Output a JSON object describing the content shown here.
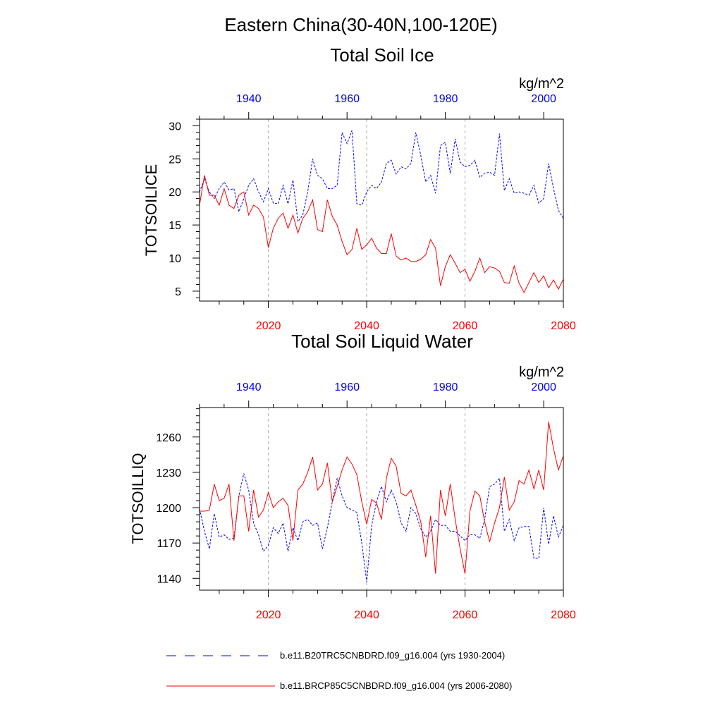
{
  "figure": {
    "main_title": "Eastern China(30-40N,100-120E)",
    "legend": [
      {
        "label": "b.e11.B20TRC5CNBDRD.f09_g16.004 (yrs 1930-2004)",
        "color": "#0000ff",
        "style": "dashed"
      },
      {
        "label": "b.e11.BRCP85C5CNBDRD.f09_g16.004 (yrs 2006-2080)",
        "color": "#ff0000",
        "style": "solid"
      }
    ]
  },
  "chart_data": [
    {
      "type": "line",
      "title": "Total Soil Ice",
      "units": "kg/m^2",
      "ylabel": "TOTSOILICE",
      "ylim": [
        3.5,
        31
      ],
      "yticks": [
        5,
        10,
        15,
        20,
        25,
        30
      ],
      "x_bottom": {
        "range": [
          2006,
          2080
        ],
        "ticks": [
          2020,
          2040,
          2060,
          2080
        ],
        "color": "#ff0000"
      },
      "x_top": {
        "range": [
          1930,
          2004
        ],
        "ticks": [
          1940,
          1960,
          1980,
          2000
        ],
        "color": "#0000ff"
      },
      "grid_x": [
        2020,
        2040,
        2060
      ],
      "series": [
        {
          "axis": "top",
          "color": "#0000ff",
          "style": "dashed",
          "x": [
            1930,
            1931,
            1932,
            1933,
            1934,
            1935,
            1936,
            1937,
            1938,
            1939,
            1940,
            1941,
            1942,
            1943,
            1944,
            1945,
            1946,
            1947,
            1948,
            1949,
            1950,
            1951,
            1952,
            1953,
            1954,
            1955,
            1956,
            1957,
            1958,
            1959,
            1960,
            1961,
            1962,
            1963,
            1964,
            1965,
            1966,
            1967,
            1968,
            1969,
            1970,
            1971,
            1972,
            1973,
            1974,
            1975,
            1976,
            1977,
            1978,
            1979,
            1980,
            1981,
            1982,
            1983,
            1984,
            1985,
            1986,
            1987,
            1988,
            1989,
            1990,
            1991,
            1992,
            1993,
            1994,
            1995,
            1996,
            1997,
            1998,
            1999,
            2000,
            2001,
            2002,
            2003,
            2004
          ],
          "y": [
            20,
            22,
            20,
            19,
            20.5,
            21.5,
            20.3,
            20.5,
            17,
            19,
            21,
            22,
            20,
            18.5,
            20.5,
            18.3,
            18.2,
            21,
            18.2,
            21.8,
            15.5,
            16.5,
            20,
            25,
            22.5,
            22,
            20.5,
            20.5,
            21,
            29,
            27.3,
            29.3,
            18.2,
            18,
            20,
            21,
            20.5,
            21.5,
            24.3,
            24.8,
            22.7,
            23.8,
            23.5,
            24.3,
            29,
            25.5,
            21.5,
            22.5,
            19.8,
            27,
            27.5,
            22.8,
            28,
            24.5,
            23.8,
            24,
            24.8,
            22.2,
            22.8,
            23,
            22.5,
            28.8,
            20.2,
            22,
            19.8,
            20,
            19.8,
            19.5,
            21,
            18.3,
            19,
            24.3,
            20.5,
            17.2,
            16
          ]
        },
        {
          "axis": "bottom",
          "color": "#ff0000",
          "style": "solid",
          "x": [
            2006,
            2007,
            2008,
            2009,
            2010,
            2011,
            2012,
            2013,
            2014,
            2015,
            2016,
            2017,
            2018,
            2019,
            2020,
            2021,
            2022,
            2023,
            2024,
            2025,
            2026,
            2027,
            2028,
            2029,
            2030,
            2031,
            2032,
            2033,
            2034,
            2035,
            2036,
            2037,
            2038,
            2039,
            2040,
            2041,
            2042,
            2043,
            2044,
            2045,
            2046,
            2047,
            2048,
            2049,
            2050,
            2051,
            2052,
            2053,
            2054,
            2055,
            2056,
            2057,
            2058,
            2059,
            2060,
            2061,
            2062,
            2063,
            2064,
            2065,
            2066,
            2067,
            2068,
            2069,
            2070,
            2071,
            2072,
            2073,
            2074,
            2075,
            2076,
            2077,
            2078,
            2079,
            2080
          ],
          "y": [
            18,
            22.5,
            19.5,
            19.5,
            18,
            20.5,
            18,
            17.5,
            19.5,
            20,
            16.5,
            18,
            17.5,
            16.2,
            11.6,
            14.5,
            16,
            16.8,
            14.5,
            16.5,
            13.8,
            16,
            17,
            18.8,
            14.3,
            14,
            18.8,
            16.3,
            15,
            12.5,
            10.5,
            11.3,
            14.5,
            11.3,
            12,
            13,
            11.5,
            10.7,
            10.7,
            13.7,
            10.3,
            9.7,
            10,
            9.5,
            9.5,
            9.8,
            10.5,
            12.8,
            11.5,
            5.8,
            8.7,
            10.5,
            9.2,
            7.8,
            8.3,
            6.5,
            8,
            10,
            7.8,
            8.7,
            8.5,
            8,
            6.3,
            6.2,
            8.8,
            6.2,
            4.8,
            6.3,
            7.8,
            6.3,
            7.3,
            5.5,
            6.7,
            5.3,
            6.8
          ]
        }
      ]
    },
    {
      "type": "line",
      "title": "Total Soil Liquid Water",
      "units": "kg/m^2",
      "ylabel": "TOTSOILLIQ",
      "ylim": [
        1130,
        1285
      ],
      "yticks": [
        1140,
        1170,
        1200,
        1230,
        1260
      ],
      "x_bottom": {
        "range": [
          2006,
          2080
        ],
        "ticks": [
          2020,
          2040,
          2060,
          2080
        ],
        "color": "#ff0000"
      },
      "x_top": {
        "range": [
          1930,
          2004
        ],
        "ticks": [
          1940,
          1960,
          1980,
          2000
        ],
        "color": "#0000ff"
      },
      "grid_x": [
        2020,
        2040,
        2060
      ],
      "series": [
        {
          "axis": "top",
          "color": "#0000ff",
          "style": "dashed",
          "x": [
            1930,
            1931,
            1932,
            1933,
            1934,
            1935,
            1936,
            1937,
            1938,
            1939,
            1940,
            1941,
            1942,
            1943,
            1944,
            1945,
            1946,
            1947,
            1948,
            1949,
            1950,
            1951,
            1952,
            1953,
            1954,
            1955,
            1956,
            1957,
            1958,
            1959,
            1960,
            1961,
            1962,
            1963,
            1964,
            1965,
            1966,
            1967,
            1968,
            1969,
            1970,
            1971,
            1972,
            1973,
            1974,
            1975,
            1976,
            1977,
            1978,
            1979,
            1980,
            1981,
            1982,
            1983,
            1984,
            1985,
            1986,
            1987,
            1988,
            1989,
            1990,
            1991,
            1992,
            1993,
            1994,
            1995,
            1996,
            1997,
            1998,
            1999,
            2000,
            2001,
            2002,
            2003,
            2004
          ],
          "y": [
            1199,
            1180,
            1165,
            1195,
            1175,
            1177,
            1173,
            1174,
            1210,
            1229,
            1215,
            1187,
            1177,
            1163,
            1168,
            1183,
            1178,
            1187,
            1163,
            1183,
            1172,
            1188,
            1190,
            1185,
            1187,
            1165,
            1183,
            1205,
            1225,
            1210,
            1200,
            1198,
            1196,
            1170,
            1137,
            1185,
            1205,
            1218,
            1205,
            1215,
            1205,
            1187,
            1180,
            1200,
            1195,
            1182,
            1175,
            1180,
            1190,
            1185,
            1185,
            1180,
            1180,
            1176,
            1172,
            1177,
            1177,
            1174,
            1190,
            1218,
            1220,
            1225,
            1180,
            1190,
            1172,
            1183,
            1184,
            1184,
            1157,
            1157,
            1200,
            1169,
            1193,
            1175,
            1185
          ]
        },
        {
          "axis": "bottom",
          "color": "#ff0000",
          "style": "solid",
          "x": [
            2006,
            2007,
            2008,
            2009,
            2010,
            2011,
            2012,
            2013,
            2014,
            2015,
            2016,
            2017,
            2018,
            2019,
            2020,
            2021,
            2022,
            2023,
            2024,
            2025,
            2026,
            2027,
            2028,
            2029,
            2030,
            2031,
            2032,
            2033,
            2034,
            2035,
            2036,
            2037,
            2038,
            2039,
            2040,
            2041,
            2042,
            2043,
            2044,
            2045,
            2046,
            2047,
            2048,
            2049,
            2050,
            2051,
            2052,
            2053,
            2054,
            2055,
            2056,
            2057,
            2058,
            2059,
            2060,
            2061,
            2062,
            2063,
            2064,
            2065,
            2066,
            2067,
            2068,
            2069,
            2070,
            2071,
            2072,
            2073,
            2074,
            2075,
            2076,
            2077,
            2078,
            2079,
            2080
          ],
          "y": [
            1197,
            1197,
            1198,
            1220,
            1206,
            1208,
            1220,
            1172,
            1210,
            1210,
            1180,
            1215,
            1192,
            1198,
            1213,
            1200,
            1205,
            1208,
            1202,
            1172,
            1215,
            1220,
            1230,
            1243,
            1215,
            1220,
            1238,
            1205,
            1218,
            1232,
            1243,
            1237,
            1228,
            1205,
            1186,
            1207,
            1204,
            1190,
            1225,
            1242,
            1235,
            1212,
            1210,
            1215,
            1202,
            1188,
            1158,
            1193,
            1144,
            1215,
            1193,
            1220,
            1190,
            1165,
            1144,
            1197,
            1214,
            1210,
            1188,
            1171,
            1187,
            1200,
            1226,
            1198,
            1205,
            1223,
            1220,
            1232,
            1216,
            1232,
            1215,
            1273,
            1250,
            1232,
            1244
          ]
        }
      ]
    }
  ]
}
